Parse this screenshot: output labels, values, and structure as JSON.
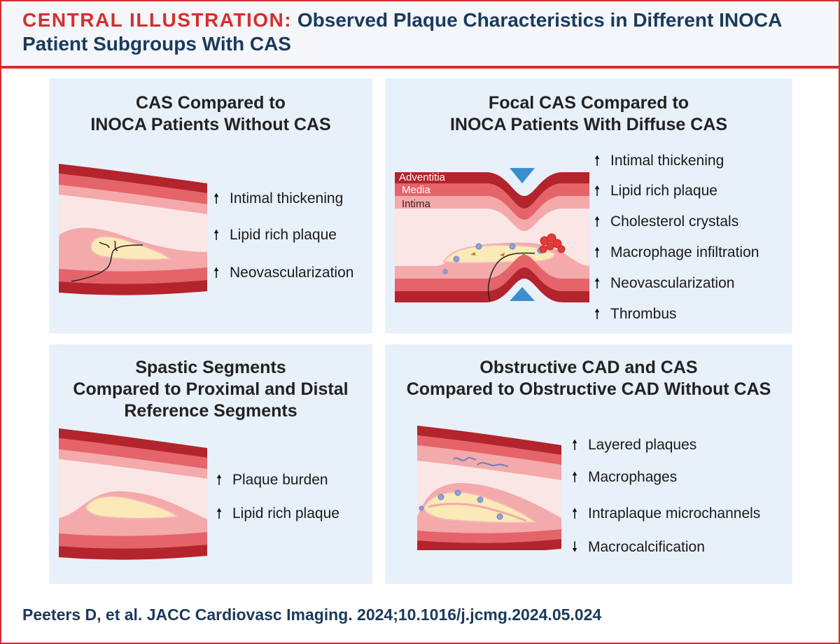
{
  "header": {
    "label": "CENTRAL ILLUSTRATION:",
    "title": "Observed Plaque Characteristics in Different INOCA Patient Subgroups With CAS"
  },
  "panels": [
    {
      "title_lines": [
        "CAS Compared to",
        "INOCA Patients Without CAS"
      ],
      "findings": [
        {
          "direction": "up",
          "text": "Intimal thickening"
        },
        {
          "direction": "up",
          "text": "Lipid rich plaque"
        },
        {
          "direction": "up",
          "text": "Neovascularization"
        }
      ]
    },
    {
      "title_lines": [
        "Focal CAS Compared to",
        "INOCA Patients With Diffuse CAS"
      ],
      "layer_labels": [
        "Adventitia",
        "Media",
        "Intima"
      ],
      "findings": [
        {
          "direction": "up",
          "text": "Intimal thickening"
        },
        {
          "direction": "up",
          "text": "Lipid rich plaque"
        },
        {
          "direction": "up",
          "text": "Cholesterol crystals"
        },
        {
          "direction": "up",
          "text": "Macrophage infiltration"
        },
        {
          "direction": "up",
          "text": "Neovascularization"
        },
        {
          "direction": "up",
          "text": "Thrombus"
        }
      ]
    },
    {
      "title_lines": [
        "Spastic Segments",
        "Compared to Proximal and Distal",
        "Reference Segments"
      ],
      "findings": [
        {
          "direction": "up",
          "text": "Plaque burden"
        },
        {
          "direction": "up",
          "text": "Lipid rich plaque"
        }
      ]
    },
    {
      "title_lines": [
        "Obstructive CAD and CAS",
        "Compared to Obstructive CAD Without CAS"
      ],
      "findings": [
        {
          "direction": "up",
          "text": "Layered plaques"
        },
        {
          "direction": "up",
          "text": "Macrophages"
        },
        {
          "direction": "up",
          "text": "Intraplaque microchannels"
        },
        {
          "direction": "down",
          "text": "Macrocalcification"
        }
      ]
    }
  ],
  "citation": "Peeters D, et al. JACC Cardiovasc Imaging. 2024;10.1016/j.jcmg.2024.05.024",
  "colors": {
    "accent_red": "#d32f2f",
    "navy": "#1b3a5c",
    "panel_bg": "#e8f0f9",
    "adventitia": "#b3242c",
    "media": "#e4646a",
    "intima": "#f8d3d3",
    "lumen": "#fbe6e6",
    "plaque_lipid": "#fbe9b7",
    "macrophage": "#8fa3d9",
    "thrombus": "#e43b3b",
    "stenosis_marker": "#3b8fd0"
  }
}
